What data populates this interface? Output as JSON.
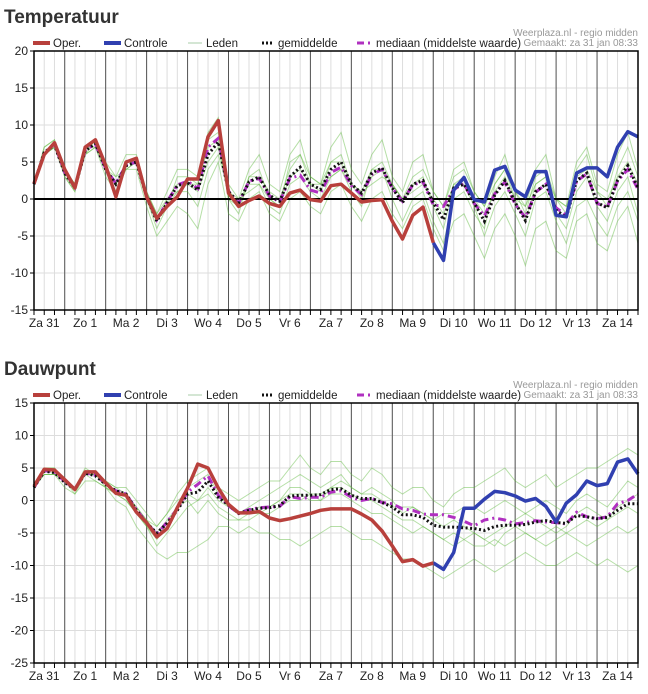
{
  "colors": {
    "oper": "#b8403c",
    "controle": "#3040b0",
    "leden": "#5cb83a",
    "gemiddelde": "#111111",
    "mediaan": "#b030c0",
    "grid": "#dddddd",
    "dayline": "#555555"
  },
  "legend": {
    "oper": "Oper.",
    "controle": "Controle",
    "leden": "Leden",
    "gemiddelde": "gemiddelde",
    "mediaan": "mediaan (middelste waarde)"
  },
  "source": {
    "line1": "Weerplaza.nl - regio midden",
    "line2": "Gemaakt: za 31 jan 08:33"
  },
  "chart_data": [
    {
      "type": "line",
      "title": "Temperatuur",
      "ylim": [
        -15,
        20
      ],
      "yticks": [
        20,
        15,
        10,
        5,
        0,
        -5,
        -10,
        -15
      ],
      "zero_line": true,
      "grid": true,
      "legend_placement": "top",
      "x_step": "6 hours",
      "x_tick_labels": [
        "Za 31",
        "Zo 1",
        "Ma 2",
        "Di 3",
        "Wo 4",
        "Do 5",
        "Vr 6",
        "Za 7",
        "Zo 8",
        "Ma 9",
        "Di 10",
        "Wo 11",
        "Do 12",
        "Vr 13",
        "Za 14"
      ],
      "oper": [
        2.1,
        6,
        7.6,
        4,
        1.5,
        7,
        8,
        4.5,
        0.3,
        5,
        5.5,
        0.3,
        -2.6,
        -1,
        0.3,
        2.7,
        2.7,
        8.4,
        10.6,
        0.8,
        -1,
        -0.2,
        0.4,
        -0.6,
        -1,
        0.8,
        1.2,
        -0.1,
        -0.3,
        1.8,
        2,
        0.8,
        -0.4,
        -0.2,
        -0.1,
        -3,
        -5.4,
        -2.2,
        -1.1,
        -5.9
      ],
      "controle": [
        null,
        null,
        null,
        null,
        null,
        null,
        null,
        null,
        null,
        null,
        null,
        null,
        null,
        null,
        null,
        null,
        null,
        null,
        null,
        null,
        null,
        null,
        null,
        null,
        null,
        null,
        null,
        null,
        null,
        null,
        null,
        null,
        null,
        null,
        null,
        null,
        null,
        null,
        null,
        -5.9,
        -8.3,
        1.2,
        2.9,
        -0.1,
        -0.4,
        3.9,
        4.4,
        1.2,
        0.3,
        3.7,
        3.7,
        -2.2,
        -2.4,
        3.5,
        4.2,
        4.2,
        3,
        7,
        9.1,
        8.4
      ],
      "gemiddelde": [
        2,
        6.3,
        7.3,
        3.5,
        1.5,
        6.5,
        7.5,
        4,
        2,
        4.5,
        5,
        0.3,
        -3,
        -0.5,
        1.8,
        2.2,
        1.2,
        6,
        7.7,
        1,
        -0.5,
        2.3,
        3,
        0.5,
        -0.3,
        3,
        4.3,
        2,
        1.3,
        4,
        5,
        2,
        0.8,
        3.5,
        4.2,
        1.5,
        -0.5,
        2,
        2.5,
        -0.5,
        -2.8,
        1.5,
        2,
        -0.5,
        -3,
        0.5,
        2.5,
        -0.5,
        -2.9,
        1,
        2,
        -1.5,
        -2.5,
        2.5,
        3.5,
        -0.5,
        -1.2,
        2.5,
        4.5,
        1.5
      ],
      "mediaan": [
        2,
        6.2,
        7.4,
        3.6,
        1.6,
        6.6,
        7.4,
        4.1,
        2.1,
        4.6,
        5,
        0.4,
        -2.8,
        -0.4,
        1.9,
        2.4,
        1.4,
        7,
        8.2,
        1.1,
        -0.6,
        2.4,
        2.8,
        0.4,
        -0.4,
        2.8,
        3.2,
        1.2,
        0.8,
        3.6,
        4.3,
        1.8,
        0.6,
        3.3,
        4,
        1.5,
        -0.3,
        1.9,
        2.3,
        -0.8,
        -1,
        1.3,
        2.1,
        -0.6,
        -2.3,
        0.7,
        2.3,
        -0.7,
        -2.5,
        0.9,
        2,
        -1.2,
        -2.2,
        2.4,
        3.4,
        -0.6,
        -1.1,
        2.4,
        4,
        1.3
      ],
      "leden": [
        [
          2,
          7,
          8,
          4,
          2,
          7,
          8,
          5,
          3,
          6,
          6,
          1,
          -2,
          1,
          4,
          4,
          3,
          9,
          11,
          2,
          0,
          4,
          6,
          2,
          1,
          6,
          8,
          3,
          2,
          7,
          9,
          4,
          2,
          6,
          8,
          3,
          1,
          5,
          6,
          1,
          -1,
          4,
          5,
          1,
          -1,
          3,
          6,
          1,
          -1,
          4,
          6,
          0,
          -1,
          5,
          7,
          2,
          1,
          6,
          9,
          4
        ],
        [
          2,
          6,
          7,
          3,
          1,
          6,
          7,
          3,
          1,
          4,
          4,
          -1,
          -5,
          -3,
          -1,
          -2,
          -4,
          2,
          5,
          -2,
          -3,
          0,
          1,
          -2,
          -3,
          0,
          1,
          -1,
          -2,
          1,
          2,
          -1,
          -3,
          0,
          1,
          -2,
          -4,
          -1,
          0,
          -4,
          -7,
          -3,
          -2,
          -5,
          -8,
          -4,
          -2,
          -5,
          -9,
          -4,
          -3,
          -7,
          -8,
          -3,
          -2,
          -6,
          -7,
          -3,
          -1,
          -6
        ],
        [
          2,
          6,
          7,
          4,
          2,
          7,
          7,
          4,
          2,
          5,
          5,
          0,
          -4,
          -1,
          3,
          3,
          2,
          7,
          8,
          0,
          -2,
          3,
          4,
          0,
          -1,
          5,
          6,
          3,
          2,
          5,
          6,
          2,
          0,
          3,
          4,
          0,
          -3,
          0,
          1,
          -3,
          -6,
          0,
          1,
          -2,
          -4,
          2,
          4,
          0,
          -3,
          2,
          3,
          -2,
          -4,
          1,
          3,
          -1,
          -3,
          1,
          3,
          -2
        ],
        [
          2,
          7,
          8,
          3,
          1,
          7,
          8,
          4,
          1,
          5,
          5,
          1,
          -2,
          0,
          1,
          1,
          -1,
          4,
          6,
          1,
          -1,
          2,
          2,
          -1,
          -2,
          2,
          3,
          1,
          0,
          3,
          4,
          1,
          -1,
          4,
          5,
          2,
          0,
          3,
          4,
          1,
          -1,
          3,
          4,
          1,
          -1,
          2,
          4,
          1,
          -2,
          3,
          4,
          0,
          -2,
          4,
          6,
          1,
          -1,
          4,
          7,
          3
        ],
        [
          2,
          6,
          7,
          4,
          2,
          6,
          7,
          4,
          3,
          4,
          5,
          1,
          -3,
          0,
          2,
          2,
          2,
          8,
          9,
          0,
          -1,
          3,
          3,
          1,
          0,
          4,
          6,
          2,
          1,
          5,
          5,
          2,
          1,
          4,
          4,
          2,
          0,
          2,
          3,
          -1,
          -4,
          2,
          2,
          -1,
          -5,
          -1,
          1,
          -2,
          -5,
          0,
          1,
          -3,
          -6,
          -1,
          0,
          -3,
          -5,
          -1,
          1,
          -3
        ],
        [
          2,
          6,
          7,
          4,
          2,
          6,
          8,
          4,
          2,
          4,
          5,
          0,
          -3,
          -1,
          1,
          2,
          1,
          5,
          7,
          1,
          0,
          1,
          2,
          0,
          -1,
          3,
          4,
          2,
          2,
          3,
          4,
          2,
          1,
          2,
          3,
          2,
          0,
          1,
          2,
          0,
          -2,
          2,
          3,
          0,
          -2,
          1,
          3,
          0,
          -1,
          2,
          3,
          0,
          -1,
          3,
          4,
          1,
          0,
          3,
          5,
          2
        ]
      ]
    },
    {
      "type": "line",
      "title": "Dauwpunt",
      "ylim": [
        -25,
        15
      ],
      "yticks": [
        15,
        10,
        5,
        0,
        -5,
        -10,
        -15,
        -20,
        -25
      ],
      "zero_line": false,
      "grid": true,
      "legend_placement": "top",
      "x_step": "6 hours",
      "x_tick_labels": [
        "Za 31",
        "Zo 1",
        "Ma 2",
        "Di 3",
        "Wo 4",
        "Do 5",
        "Vr 6",
        "Za 7",
        "Zo 8",
        "Ma 9",
        "Di 10",
        "Wo 11",
        "Do 12",
        "Vr 13",
        "Za 14"
      ],
      "oper": [
        2.2,
        4.8,
        4.7,
        3.2,
        1.7,
        4.4,
        4.4,
        2.7,
        1.1,
        0.8,
        -1.8,
        -3.4,
        -5.6,
        -4.3,
        -1.1,
        1.9,
        5.6,
        5,
        1.9,
        -0.6,
        -1.9,
        -1.9,
        -1.7,
        -2.7,
        -3.1,
        -2.8,
        -2.4,
        -2,
        -1.5,
        -1.3,
        -1.3,
        -1.3,
        -2.1,
        -3,
        -4.7,
        -7,
        -9.4,
        -9.1,
        -10.1,
        -9.6
      ],
      "controle": [
        null,
        null,
        null,
        null,
        null,
        null,
        null,
        null,
        null,
        null,
        null,
        null,
        null,
        null,
        null,
        null,
        null,
        null,
        null,
        null,
        null,
        null,
        null,
        null,
        null,
        null,
        null,
        null,
        null,
        null,
        null,
        null,
        null,
        null,
        null,
        null,
        null,
        null,
        null,
        -9.6,
        -10.6,
        -8,
        -1.2,
        -1.2,
        0.2,
        1.4,
        1.2,
        0.7,
        -0.1,
        0.3,
        -0.9,
        -3.3,
        -0.4,
        0.9,
        3,
        2.3,
        2.6,
        5.9,
        6.4,
        4.1
      ],
      "gemiddelde": [
        2,
        4.5,
        4.3,
        2.8,
        1.7,
        4.2,
        3.8,
        2.5,
        1.5,
        1,
        -1.5,
        -3.5,
        -5,
        -3.5,
        -1.5,
        1,
        1.3,
        3,
        0.5,
        -0.7,
        -2,
        -1.5,
        -1.2,
        -1.1,
        -0.8,
        0.7,
        0.8,
        0.8,
        0.9,
        1.7,
        1.8,
        0.8,
        0.3,
        0.3,
        -0.3,
        -1,
        -2.2,
        -2.2,
        -2.6,
        -3.8,
        -4.1,
        -4.1,
        -4.2,
        -4.3,
        -4.6,
        -4,
        -3.8,
        -3.8,
        -3.7,
        -3.3,
        -3.1,
        -3.4,
        -3.5,
        -2.3,
        -2.5,
        -2.8,
        -2.6,
        -1.5,
        -0.5,
        -0.5
      ],
      "mediaan": [
        2,
        4.6,
        4.4,
        2.9,
        1.8,
        4.2,
        3.9,
        2.6,
        1.5,
        1,
        -1.4,
        -3.4,
        -5.2,
        -3.3,
        -1.3,
        1.3,
        2.5,
        3.8,
        0.8,
        -0.8,
        -2,
        -1.4,
        -1.1,
        -1,
        -0.9,
        0.6,
        0.3,
        0.5,
        0.5,
        1.3,
        1.5,
        0.5,
        0,
        0.3,
        -0.3,
        -0.5,
        -1.3,
        -1.5,
        -2.1,
        -2.2,
        -2.2,
        -2.6,
        -3.2,
        -3.9,
        -3,
        -2.7,
        -3,
        -3.6,
        -3.4,
        -3.1,
        -3.3,
        -3.4,
        -3.6,
        -1.8,
        -2.5,
        -2.8,
        -2.5,
        -0.5,
        0,
        1
      ],
      "leden": [
        [
          2,
          5,
          5,
          3,
          2,
          5,
          4,
          3,
          2,
          2,
          0,
          -2,
          -4,
          -2,
          1,
          3,
          4,
          5,
          2,
          1,
          0,
          1,
          2,
          3,
          3,
          5,
          7,
          5,
          4,
          6,
          6,
          4,
          3,
          5,
          4,
          2,
          1,
          2,
          2,
          0,
          -1,
          1,
          2,
          2,
          3,
          4,
          5,
          3,
          2,
          3,
          4,
          2,
          3,
          4,
          5,
          5,
          6,
          7,
          8,
          7
        ],
        [
          2,
          4,
          4,
          2,
          1,
          3,
          3,
          2,
          0,
          -1,
          -4,
          -6,
          -8,
          -9,
          -8,
          -8,
          -7,
          -6,
          -4,
          -4,
          -5,
          -4,
          -5,
          -5,
          -6,
          -6,
          -7,
          -6,
          -5,
          -4,
          -4,
          -5,
          -6,
          -6,
          -7,
          -8,
          -9,
          -9,
          -10,
          -11,
          -12,
          -11,
          -10,
          -9,
          -10,
          -11,
          -10,
          -9,
          -8,
          -9,
          -10,
          -10,
          -9,
          -8,
          -9,
          -10,
          -9,
          -10,
          -11,
          -10
        ],
        [
          2,
          5,
          4,
          3,
          2,
          4,
          4,
          2,
          1,
          0,
          -2,
          -4,
          -6,
          -4,
          -1,
          2,
          3,
          4,
          1,
          -1,
          -2,
          -1,
          0,
          1,
          2,
          3,
          4,
          3,
          2,
          3,
          4,
          2,
          1,
          2,
          1,
          0,
          -2,
          -1,
          -2,
          -3,
          -4,
          -3,
          -4,
          -5,
          -6,
          -5,
          -4,
          -3,
          -2,
          -3,
          -4,
          -5,
          -4,
          -2,
          -1,
          -2,
          -3,
          -1,
          0,
          1
        ],
        [
          2,
          4,
          4,
          3,
          2,
          4,
          4,
          3,
          2,
          1,
          -1,
          -3,
          -4,
          -2,
          0,
          1,
          0,
          1,
          -1,
          -2,
          -3,
          -3,
          -2,
          -2,
          -1,
          0,
          0,
          1,
          0,
          1,
          1,
          0,
          -1,
          -2,
          -2,
          -3,
          -4,
          -5,
          -4,
          -5,
          -6,
          -7,
          -6,
          -5,
          -6,
          -7,
          -5,
          -4,
          -5,
          -6,
          -7,
          -6,
          -5,
          -6,
          -7,
          -6,
          -5,
          -4,
          -5,
          -4
        ],
        [
          2,
          5,
          5,
          3,
          2,
          4,
          4,
          3,
          1,
          1,
          -1,
          -3,
          -5,
          -3,
          -1,
          0,
          -2,
          0,
          -2,
          -3,
          -3,
          -2,
          -1,
          -1,
          0,
          2,
          2,
          1,
          1,
          2,
          3,
          2,
          1,
          1,
          0,
          -1,
          -1,
          -1,
          -2,
          -3,
          -2,
          -2,
          -1,
          -1,
          -2,
          -1,
          0,
          -1,
          -2,
          -1,
          0,
          -1,
          -2,
          0,
          1,
          0,
          -1,
          1,
          3,
          2
        ],
        [
          2,
          4,
          4,
          3,
          1,
          4,
          3,
          2,
          1,
          0,
          -2,
          -4,
          -7,
          -5,
          -3,
          -1,
          0,
          2,
          0,
          -1,
          -2,
          -2,
          -2,
          -1,
          0,
          1,
          1,
          0,
          0,
          2,
          2,
          1,
          0,
          0,
          -1,
          -2,
          -3,
          -3,
          -4,
          -5,
          -6,
          -5,
          -6,
          -7,
          -7,
          -6,
          -7,
          -6,
          -5,
          -6,
          -5,
          -4,
          -5,
          -4,
          -3,
          -4,
          -3,
          -2,
          -1,
          -2
        ]
      ]
    }
  ]
}
